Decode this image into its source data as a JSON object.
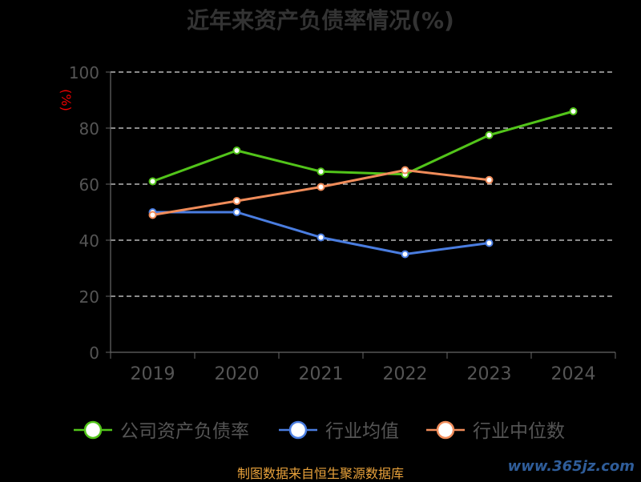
{
  "title": "近年来资产负债率情况(%)",
  "source": "制图数据来自恒生聚源数据库",
  "watermark": "www.365jz.com",
  "chart_data": {
    "type": "line",
    "ylabel": "(%)",
    "ylim": [
      0,
      100
    ],
    "yticks": [
      "0",
      "20",
      "40",
      "60",
      "80",
      "100"
    ],
    "categories": [
      "2019",
      "2020",
      "2021",
      "2022",
      "2023",
      "2024"
    ],
    "grid": true,
    "legend": "bottom",
    "series": [
      {
        "name": "公司资产负债率",
        "color": "#52c41a",
        "values": [
          61,
          72,
          64.5,
          63.5,
          77.5,
          86
        ]
      },
      {
        "name": "行业均值",
        "color": "#4a7de0",
        "values": [
          50,
          50,
          41,
          35,
          39,
          null
        ]
      },
      {
        "name": "行业中位数",
        "color": "#f08c5a",
        "values": [
          49,
          54,
          59,
          65,
          61.5,
          null
        ]
      }
    ]
  }
}
